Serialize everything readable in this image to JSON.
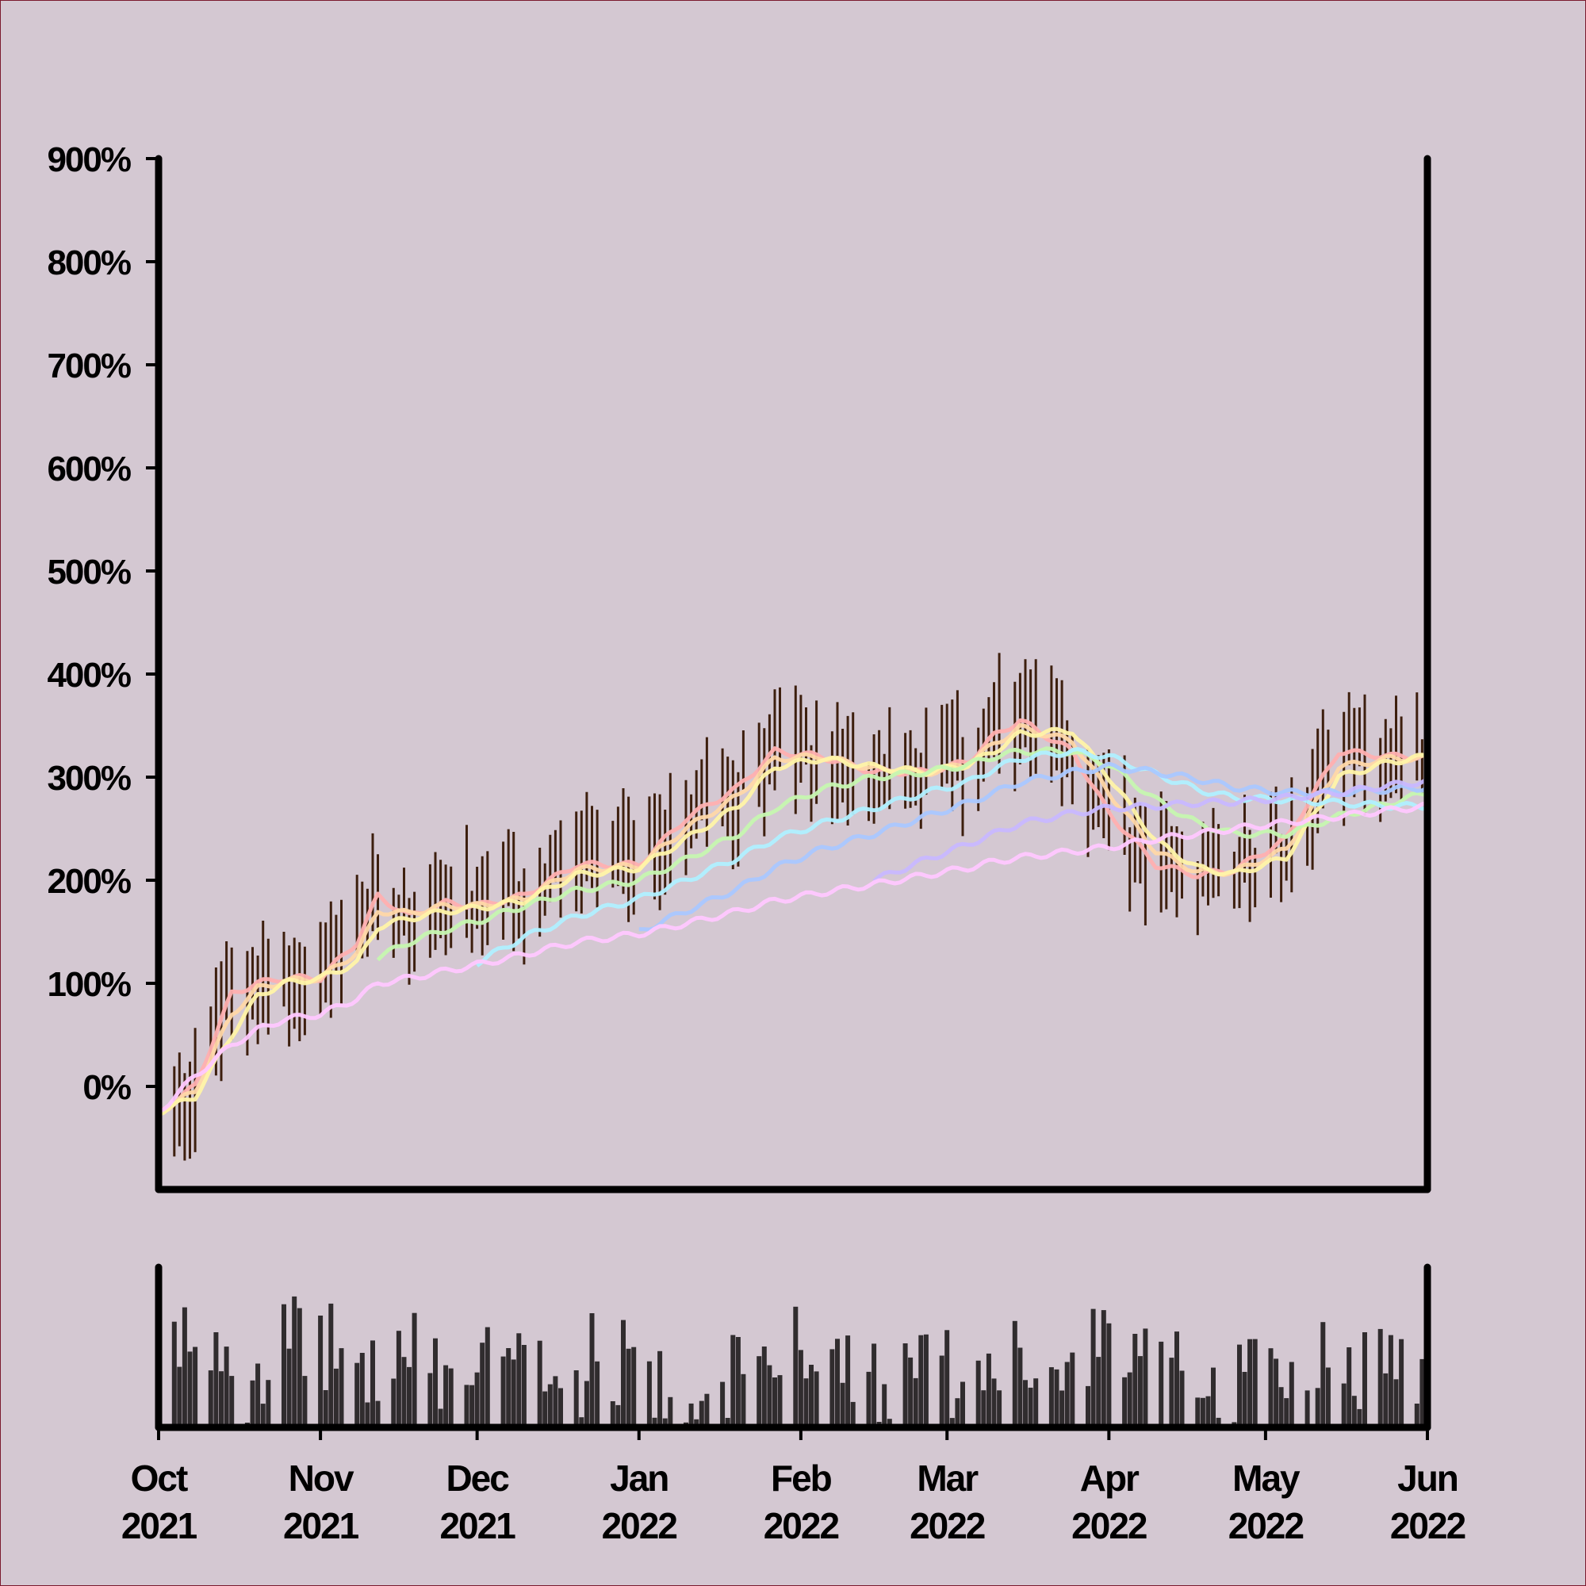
{
  "chart_data": [
    {
      "type": "line",
      "subtype": "ohlc-bars-with-moving-averages",
      "y_unit": "percent",
      "ylim": [
        -100,
        900
      ],
      "yticks": [
        0,
        100,
        200,
        300,
        400,
        500,
        600,
        700,
        800,
        900
      ],
      "ytick_labels": [
        "0%",
        "100%",
        "200%",
        "300%",
        "400%",
        "500%",
        "600%",
        "700%",
        "800%",
        "900%"
      ],
      "xlim": [
        "2021-10-01",
        "2022-06-01"
      ],
      "xticks": [
        "2021-10-01",
        "2021-11-01",
        "2021-12-01",
        "2022-01-01",
        "2022-02-01",
        "2022-03-01",
        "2022-04-01",
        "2022-05-01",
        "2022-06-01"
      ],
      "xtick_labels": [
        [
          "Oct",
          "2021"
        ],
        [
          "Nov",
          "2021"
        ],
        [
          "Dec",
          "2021"
        ],
        [
          "Jan",
          "2022"
        ],
        [
          "Feb",
          "2022"
        ],
        [
          "Mar",
          "2022"
        ],
        [
          "Apr",
          "2022"
        ],
        [
          "May",
          "2022"
        ],
        [
          "Jun",
          "2022"
        ]
      ],
      "bar_color": "#3d1f0e",
      "price_anchors": {
        "x": [
          "2021-10-01",
          "2021-10-08",
          "2021-10-15",
          "2021-10-20",
          "2021-10-25",
          "2021-11-01",
          "2021-11-08",
          "2021-11-12",
          "2021-11-18",
          "2021-11-25",
          "2021-12-01",
          "2021-12-10",
          "2021-12-20",
          "2022-01-01",
          "2022-01-10",
          "2022-01-20",
          "2022-01-27",
          "2022-02-05",
          "2022-02-15",
          "2022-02-25",
          "2022-03-05",
          "2022-03-10",
          "2022-03-15",
          "2022-03-25",
          "2022-04-01",
          "2022-04-10",
          "2022-04-18",
          "2022-04-25",
          "2022-05-05",
          "2022-05-15",
          "2022-05-25",
          "2022-06-01"
        ],
        "y": [
          -25,
          0,
          90,
          100,
          105,
          105,
          140,
          190,
          165,
          180,
          175,
          185,
          220,
          215,
          265,
          290,
          330,
          320,
          305,
          305,
          315,
          340,
          355,
          320,
          260,
          215,
          205,
          210,
          240,
          330,
          320,
          320
        ]
      },
      "series": [
        {
          "color": "#ffb0b0",
          "values": [
            -25,
            0,
            90,
            100,
            105,
            105,
            140,
            185,
            165,
            178,
            175,
            185,
            215,
            215,
            260,
            290,
            325,
            320,
            305,
            305,
            315,
            340,
            355,
            325,
            265,
            215,
            205,
            210,
            240,
            325,
            320,
            320
          ]
        },
        {
          "color": "#ffd8a8",
          "values": [
            -25,
            -5,
            70,
            95,
            102,
            105,
            130,
            170,
            168,
            175,
            175,
            182,
            210,
            214,
            250,
            282,
            318,
            320,
            308,
            304,
            313,
            332,
            348,
            335,
            285,
            228,
            208,
            208,
            230,
            310,
            318,
            318
          ]
        },
        {
          "color": "#fff4a8",
          "values": [
            -25,
            -10,
            50,
            88,
            100,
            105,
            120,
            155,
            163,
            170,
            173,
            180,
            205,
            212,
            240,
            272,
            310,
            318,
            310,
            305,
            312,
            325,
            342,
            345,
            300,
            238,
            212,
            206,
            222,
            300,
            315,
            320
          ]
        },
        {
          "color": "#c6f7b0",
          "values": [
            null,
            null,
            null,
            null,
            null,
            null,
            null,
            125,
            140,
            152,
            160,
            175,
            190,
            200,
            220,
            245,
            270,
            288,
            300,
            305,
            312,
            320,
            325,
            325,
            312,
            278,
            255,
            245,
            245,
            262,
            275,
            285
          ]
        },
        {
          "color": "#b0f0ff",
          "values": [
            null,
            null,
            null,
            null,
            null,
            null,
            null,
            null,
            null,
            null,
            120,
            145,
            165,
            182,
            200,
            222,
            240,
            255,
            270,
            285,
            295,
            308,
            318,
            325,
            320,
            303,
            288,
            280,
            278,
            275,
            272,
            272
          ]
        },
        {
          "color": "#aac8ff",
          "values": [
            null,
            null,
            null,
            null,
            null,
            null,
            null,
            null,
            null,
            null,
            null,
            null,
            null,
            150,
            170,
            192,
            212,
            230,
            245,
            262,
            275,
            285,
            295,
            305,
            310,
            305,
            298,
            290,
            285,
            285,
            288,
            290
          ]
        },
        {
          "color": "#c8b8ff",
          "values": [
            null,
            null,
            null,
            null,
            null,
            null,
            null,
            null,
            null,
            null,
            null,
            null,
            null,
            null,
            null,
            null,
            null,
            null,
            200,
            220,
            235,
            245,
            255,
            265,
            270,
            272,
            275,
            276,
            280,
            285,
            292,
            296
          ]
        },
        {
          "color": "#ffc8ff",
          "values": [
            -25,
            10,
            40,
            55,
            65,
            70,
            85,
            100,
            105,
            112,
            118,
            128,
            140,
            148,
            158,
            170,
            180,
            188,
            196,
            205,
            212,
            218,
            222,
            228,
            232,
            240,
            245,
            250,
            256,
            262,
            268,
            272
          ]
        }
      ]
    },
    {
      "type": "bar",
      "subtype": "volume",
      "bar_color": "#302c2e",
      "xlim": [
        "2021-10-01",
        "2022-06-01"
      ],
      "volume_profile": [
        0.6,
        0.5,
        0.45,
        0.6,
        0.55,
        0.4,
        0.5,
        0.35,
        0.45,
        0.4,
        0.5,
        0.45,
        0.35,
        0.4,
        0.45,
        0.4,
        0.55,
        0.45,
        0.4,
        0.45,
        0.4,
        0.45,
        0.4,
        0.55,
        0.5,
        0.45,
        0.35,
        0.4,
        0.45,
        0.45,
        0.4,
        0.45
      ]
    }
  ]
}
